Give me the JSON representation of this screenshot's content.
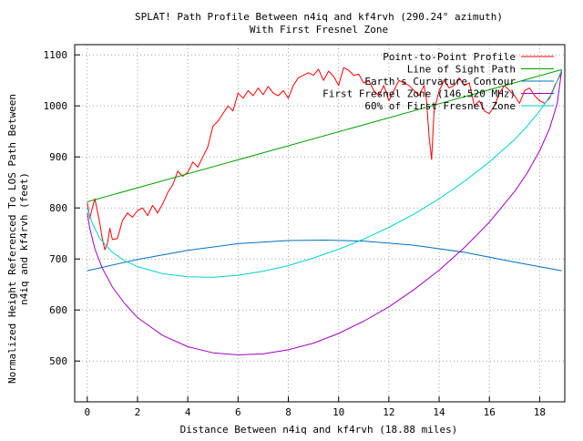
{
  "chart_data": {
    "type": "line",
    "title": "SPLAT! Path Profile Between n4iq and kf4rvh (290.24° azimuth)",
    "subtitle": "With First Fresnel Zone",
    "xlabel": "Distance Between n4iq and kf4rvh (18.88 miles)",
    "ylabel_line1": "Normalized Height Referenced To LOS Path Between",
    "ylabel_line2": "n4iq and kf4rvh (feet)",
    "xlim": [
      -0.5,
      19
    ],
    "ylim": [
      420,
      1120
    ],
    "x_ticks": [
      0,
      2,
      4,
      6,
      8,
      10,
      12,
      14,
      16,
      18
    ],
    "y_ticks": [
      500,
      600,
      700,
      800,
      900,
      1000,
      1100
    ],
    "grid": true,
    "legend_position": "top-right",
    "series": [
      {
        "name": "Point-to-Point Profile",
        "color": "#ff0000",
        "x": [
          0,
          0.1,
          0.2,
          0.3,
          0.4,
          0.5,
          0.6,
          0.7,
          0.8,
          0.9,
          1.0,
          1.2,
          1.4,
          1.6,
          1.8,
          2.0,
          2.2,
          2.4,
          2.6,
          2.8,
          3.0,
          3.2,
          3.4,
          3.6,
          3.8,
          4.0,
          4.2,
          4.4,
          4.6,
          4.8,
          5.0,
          5.2,
          5.4,
          5.6,
          5.8,
          6.0,
          6.2,
          6.4,
          6.6,
          6.8,
          7.0,
          7.2,
          7.4,
          7.6,
          7.8,
          8.0,
          8.2,
          8.4,
          8.6,
          8.8,
          9.0,
          9.2,
          9.4,
          9.6,
          9.8,
          10.0,
          10.2,
          10.4,
          10.6,
          10.8,
          11.0,
          11.2,
          11.4,
          11.6,
          11.8,
          12.0,
          12.2,
          12.4,
          12.6,
          12.8,
          13.0,
          13.2,
          13.4,
          13.5,
          13.6,
          13.7,
          13.8,
          14.0,
          14.2,
          14.4,
          14.6,
          14.8,
          15.0,
          15.2,
          15.4,
          15.6,
          15.8,
          16.0,
          16.2,
          16.4,
          16.6,
          16.8,
          17.0,
          17.2,
          17.4,
          17.6,
          17.8,
          18.0,
          18.2,
          18.4,
          18.6,
          18.88
        ],
        "values": [
          810,
          780,
          800,
          818,
          795,
          770,
          740,
          718,
          730,
          760,
          738,
          740,
          775,
          790,
          782,
          795,
          800,
          785,
          805,
          790,
          808,
          830,
          845,
          872,
          862,
          870,
          890,
          880,
          900,
          920,
          960,
          970,
          985,
          1000,
          990,
          1025,
          1015,
          1030,
          1020,
          1035,
          1022,
          1038,
          1025,
          1020,
          1030,
          1015,
          1040,
          1055,
          1060,
          1065,
          1060,
          1072,
          1050,
          1068,
          1058,
          1040,
          1075,
          1070,
          1060,
          1062,
          1045,
          1050,
          1030,
          1020,
          1040,
          1010,
          1030,
          1050,
          1045,
          1040,
          1030,
          1020,
          1040,
          1010,
          940,
          895,
          990,
          1030,
          1050,
          1035,
          1040,
          1055,
          1040,
          1045,
          1000,
          1010,
          990,
          985,
          1000,
          1025,
          1040,
          1030,
          1020,
          1005,
          1030,
          1035,
          1020,
          1010,
          1005,
          1015,
          1040,
          1065
        ]
      },
      {
        "name": "Line of Sight Path",
        "color": "#00a000",
        "x": [
          0,
          18.88
        ],
        "values": [
          812,
          1071
        ]
      },
      {
        "name": "Earth's Curvature Contour",
        "color": "#0070c0",
        "x": [
          0,
          2,
          4,
          6,
          8,
          9.44,
          11,
          13,
          15,
          17,
          18.88
        ],
        "values": [
          677,
          699,
          717,
          730,
          736,
          737,
          735,
          727,
          713,
          694,
          677
        ]
      },
      {
        "name": "First Fresnel Zone (146.520 MHz)",
        "color": "#a000c0",
        "x": [
          0,
          0.1,
          0.3,
          0.6,
          1,
          1.5,
          2,
          3,
          4,
          5,
          6,
          7,
          8,
          9,
          10,
          11,
          12,
          13,
          14,
          15,
          16,
          17,
          17.5,
          18,
          18.4,
          18.7,
          18.88
        ],
        "values": [
          790,
          760,
          720,
          682,
          645,
          612,
          585,
          550,
          528,
          516,
          512,
          514,
          522,
          535,
          554,
          578,
          606,
          640,
          678,
          722,
          772,
          832,
          868,
          912,
          956,
          1005,
          1071
        ]
      },
      {
        "name": "60% of First Fresnel Zone",
        "color": "#00d0d0",
        "x": [
          0,
          0.2,
          0.5,
          1,
          1.5,
          2,
          3,
          4,
          5,
          6,
          7,
          8,
          9,
          10,
          11,
          12,
          13,
          14,
          15,
          16,
          17,
          17.5,
          18,
          18.5,
          18.88
        ],
        "values": [
          800,
          770,
          740,
          713,
          696,
          685,
          671,
          665,
          664,
          668,
          676,
          687,
          702,
          719,
          739,
          762,
          788,
          818,
          852,
          890,
          934,
          960,
          990,
          1025,
          1071
        ]
      }
    ]
  }
}
